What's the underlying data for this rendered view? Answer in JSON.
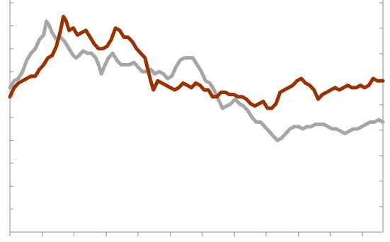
{
  "chart_data": {
    "type": "line",
    "title": "",
    "xlabel": "",
    "ylabel": "",
    "x_range": [
      0,
      530
    ],
    "y_left_range": [
      0,
      10
    ],
    "y_right_range": [
      0,
      9
    ],
    "y_left_ticks": [
      0,
      1,
      2,
      3,
      4,
      5,
      6,
      7,
      8,
      9,
      10
    ],
    "y_right_ticks": [
      0,
      1,
      2,
      3,
      4,
      5,
      6,
      7,
      8,
      9
    ],
    "x_ticks": [
      0,
      46,
      91,
      137,
      182,
      228,
      273,
      319,
      364,
      410,
      455,
      501
    ],
    "grid": false,
    "legend": "none",
    "colors": {
      "axis": "#8c8c8c"
    },
    "series": [
      {
        "color": "#a6a6a6",
        "axis": "left",
        "points": [
          [
            0,
            6.3
          ],
          [
            6,
            6.6
          ],
          [
            12,
            6.7
          ],
          [
            18,
            7.0
          ],
          [
            24,
            7.5
          ],
          [
            30,
            7.8
          ],
          [
            36,
            8.0
          ],
          [
            42,
            8.4
          ],
          [
            48,
            8.6
          ],
          [
            52,
            9.2
          ],
          [
            56,
            9.0
          ],
          [
            60,
            8.7
          ],
          [
            66,
            8.4
          ],
          [
            72,
            8.5
          ],
          [
            78,
            8.3
          ],
          [
            84,
            8.0
          ],
          [
            90,
            7.7
          ],
          [
            94,
            7.6
          ],
          [
            98,
            7.7
          ],
          [
            104,
            7.9
          ],
          [
            110,
            7.8
          ],
          [
            116,
            7.8
          ],
          [
            122,
            7.6
          ],
          [
            126,
            7.3
          ],
          [
            130,
            6.9
          ],
          [
            134,
            7.2
          ],
          [
            140,
            7.6
          ],
          [
            146,
            7.8
          ],
          [
            152,
            7.5
          ],
          [
            158,
            7.3
          ],
          [
            164,
            7.3
          ],
          [
            170,
            7.3
          ],
          [
            176,
            7.4
          ],
          [
            182,
            7.2
          ],
          [
            188,
            7.0
          ],
          [
            194,
            7.0
          ],
          [
            200,
            7.1
          ],
          [
            206,
            6.9
          ],
          [
            212,
            7.0
          ],
          [
            218,
            6.9
          ],
          [
            224,
            6.7
          ],
          [
            230,
            6.8
          ],
          [
            236,
            7.2
          ],
          [
            242,
            7.5
          ],
          [
            248,
            7.6
          ],
          [
            254,
            7.6
          ],
          [
            260,
            7.6
          ],
          [
            266,
            7.3
          ],
          [
            272,
            7.0
          ],
          [
            278,
            6.6
          ],
          [
            284,
            6.5
          ],
          [
            290,
            6.2
          ],
          [
            296,
            5.8
          ],
          [
            302,
            5.4
          ],
          [
            308,
            5.5
          ],
          [
            314,
            5.6
          ],
          [
            320,
            5.8
          ],
          [
            326,
            5.6
          ],
          [
            332,
            5.5
          ],
          [
            338,
            5.3
          ],
          [
            344,
            5.0
          ],
          [
            350,
            4.8
          ],
          [
            356,
            4.8
          ],
          [
            362,
            4.6
          ],
          [
            368,
            4.4
          ],
          [
            374,
            4.2
          ],
          [
            380,
            4.0
          ],
          [
            386,
            4.1
          ],
          [
            392,
            4.3
          ],
          [
            398,
            4.5
          ],
          [
            404,
            4.6
          ],
          [
            410,
            4.6
          ],
          [
            416,
            4.5
          ],
          [
            422,
            4.6
          ],
          [
            428,
            4.6
          ],
          [
            434,
            4.7
          ],
          [
            440,
            4.7
          ],
          [
            446,
            4.7
          ],
          [
            452,
            4.6
          ],
          [
            458,
            4.5
          ],
          [
            464,
            4.5
          ],
          [
            470,
            4.4
          ],
          [
            476,
            4.3
          ],
          [
            482,
            4.4
          ],
          [
            488,
            4.5
          ],
          [
            494,
            4.5
          ],
          [
            500,
            4.6
          ],
          [
            506,
            4.7
          ],
          [
            512,
            4.8
          ],
          [
            518,
            4.8
          ],
          [
            524,
            4.9
          ],
          [
            530,
            4.8
          ]
        ]
      },
      {
        "color": "#9b3000",
        "axis": "left",
        "points": [
          [
            0,
            5.9
          ],
          [
            6,
            6.3
          ],
          [
            12,
            6.5
          ],
          [
            18,
            6.6
          ],
          [
            24,
            6.7
          ],
          [
            30,
            6.8
          ],
          [
            36,
            6.8
          ],
          [
            42,
            7.1
          ],
          [
            48,
            7.3
          ],
          [
            54,
            7.6
          ],
          [
            60,
            7.7
          ],
          [
            66,
            8.1
          ],
          [
            72,
            8.8
          ],
          [
            76,
            9.4
          ],
          [
            80,
            9.2
          ],
          [
            84,
            8.8
          ],
          [
            90,
            8.9
          ],
          [
            96,
            8.6
          ],
          [
            102,
            8.7
          ],
          [
            108,
            8.8
          ],
          [
            114,
            8.5
          ],
          [
            120,
            8.2
          ],
          [
            126,
            8.0
          ],
          [
            132,
            8.0
          ],
          [
            138,
            8.1
          ],
          [
            144,
            8.4
          ],
          [
            150,
            8.9
          ],
          [
            156,
            8.8
          ],
          [
            162,
            8.5
          ],
          [
            168,
            8.5
          ],
          [
            174,
            8.3
          ],
          [
            180,
            8.0
          ],
          [
            186,
            7.8
          ],
          [
            192,
            7.6
          ],
          [
            196,
            7.1
          ],
          [
            200,
            6.6
          ],
          [
            204,
            6.2
          ],
          [
            210,
            6.6
          ],
          [
            216,
            6.5
          ],
          [
            222,
            6.4
          ],
          [
            228,
            6.3
          ],
          [
            234,
            6.2
          ],
          [
            240,
            6.3
          ],
          [
            246,
            6.5
          ],
          [
            252,
            6.4
          ],
          [
            258,
            6.3
          ],
          [
            264,
            6.5
          ],
          [
            270,
            6.4
          ],
          [
            276,
            6.2
          ],
          [
            282,
            6.2
          ],
          [
            288,
            5.9
          ],
          [
            294,
            5.9
          ],
          [
            300,
            6.1
          ],
          [
            306,
            6.1
          ],
          [
            312,
            6.0
          ],
          [
            318,
            6.0
          ],
          [
            324,
            5.9
          ],
          [
            330,
            5.9
          ],
          [
            336,
            5.8
          ],
          [
            342,
            5.6
          ],
          [
            348,
            5.5
          ],
          [
            354,
            5.6
          ],
          [
            360,
            5.7
          ],
          [
            366,
            5.4
          ],
          [
            372,
            5.4
          ],
          [
            378,
            5.6
          ],
          [
            384,
            6.1
          ],
          [
            390,
            6.2
          ],
          [
            396,
            6.3
          ],
          [
            402,
            6.4
          ],
          [
            408,
            6.6
          ],
          [
            414,
            6.7
          ],
          [
            420,
            6.5
          ],
          [
            426,
            6.4
          ],
          [
            432,
            6.2
          ],
          [
            438,
            5.8
          ],
          [
            444,
            6.0
          ],
          [
            450,
            6.1
          ],
          [
            456,
            6.2
          ],
          [
            462,
            6.3
          ],
          [
            468,
            6.2
          ],
          [
            474,
            6.3
          ],
          [
            480,
            6.4
          ],
          [
            486,
            6.3
          ],
          [
            492,
            6.3
          ],
          [
            498,
            6.4
          ],
          [
            504,
            6.3
          ],
          [
            510,
            6.4
          ],
          [
            516,
            6.7
          ],
          [
            522,
            6.6
          ],
          [
            530,
            6.6
          ]
        ]
      }
    ]
  }
}
